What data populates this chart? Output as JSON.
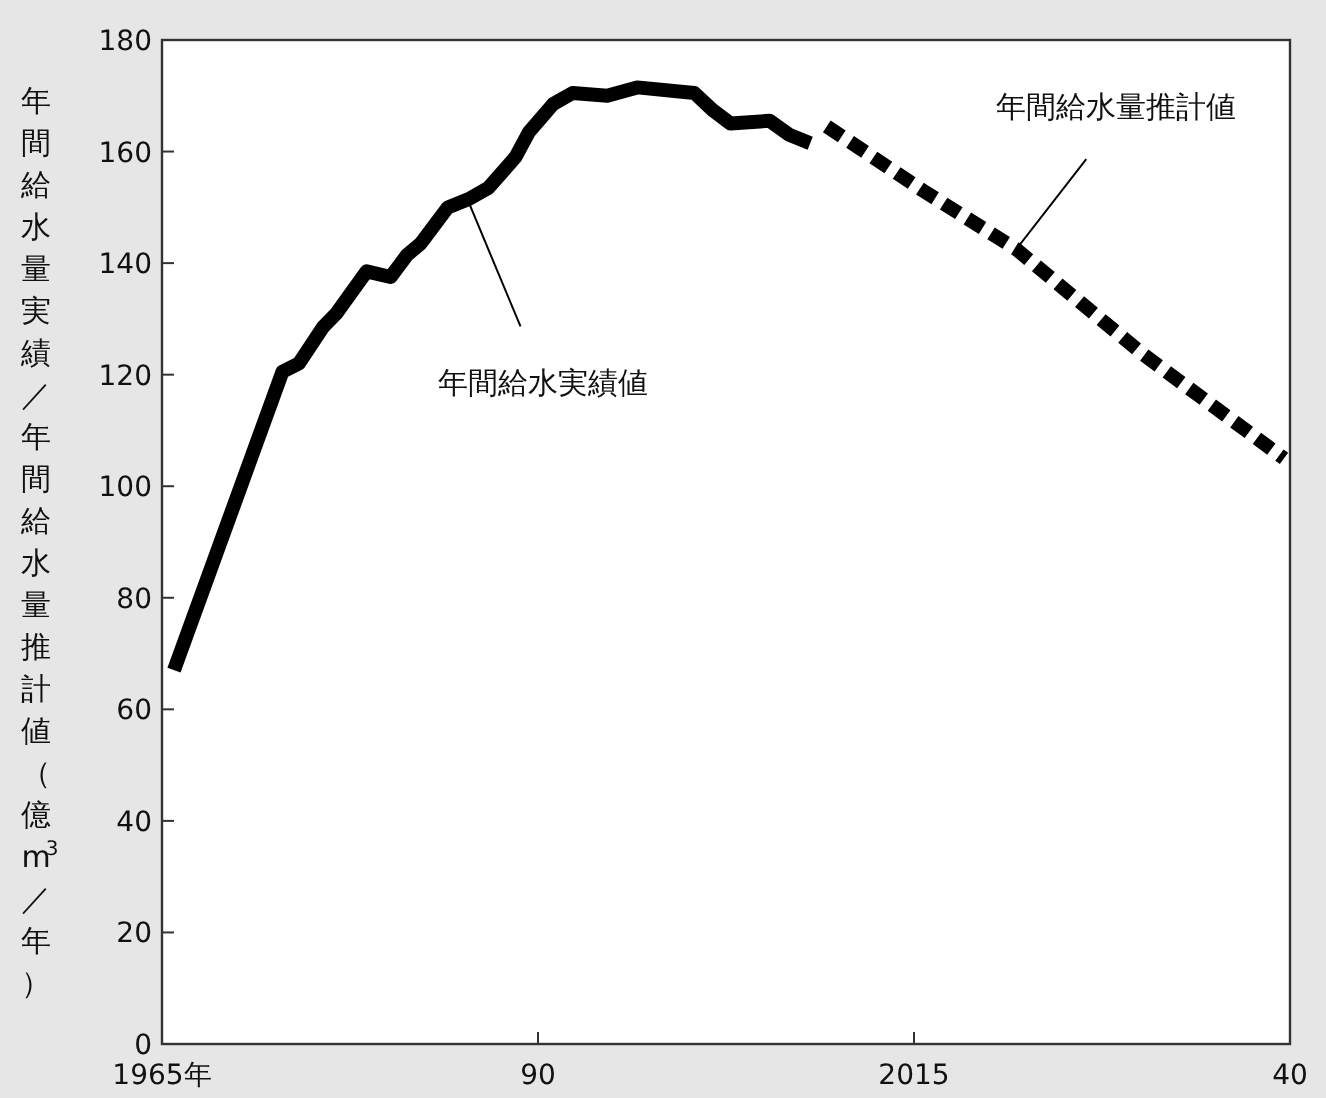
{
  "chart_data": {
    "type": "line",
    "ylabel": "年間給水量実績／年間給水量推計値（億m$^{3}$／年）",
    "xlim": [
      1965,
      2040
    ],
    "ylim": [
      0,
      180
    ],
    "xticks": [
      {
        "value": 1965,
        "label": "1965年"
      },
      {
        "value": 1990,
        "label": "90"
      },
      2015,
      {
        "value": 2040,
        "label": "40"
      }
    ],
    "yticks": [
      0,
      20,
      40,
      60,
      80,
      100,
      120,
      140,
      160,
      180
    ],
    "grid": false,
    "series": [
      {
        "color": "#000000",
        "line_style": "solid",
        "x": [
          1965.8,
          1973.0,
          1974.1,
          1975.7,
          1976.6,
          1978.6,
          1980.2,
          1981.3,
          1982.2,
          1984.0,
          1985.4,
          1986.7,
          1988.5,
          1989.4,
          1991.0,
          1992.3,
          1994.6,
          1996.6,
          2000.4,
          2001.6,
          2002.8,
          2005.4,
          2006.7,
          2008.1
        ],
        "values": [
          67,
          120.5,
          122,
          128.5,
          131,
          138.5,
          137.5,
          141.5,
          143.5,
          150,
          151.5,
          153.5,
          159,
          163.5,
          168.5,
          170.5,
          170,
          171.5,
          170.5,
          167.5,
          165,
          165.5,
          163,
          161.5
        ]
      },
      {
        "color": "#000000",
        "line_style": "dashed",
        "x": [
          2009.2,
          2015.6,
          2021.8,
          2030.3,
          2039.6
        ],
        "values": [
          164.5,
          153,
          142.5,
          123.5,
          105
        ]
      }
    ],
    "annotations": [
      {
        "text": "年間給水実績値",
        "x": 1985.3,
        "y": 151.5
      },
      {
        "text": "年間給水量推計値",
        "x": 2021.8,
        "y": 142.5
      }
    ]
  }
}
